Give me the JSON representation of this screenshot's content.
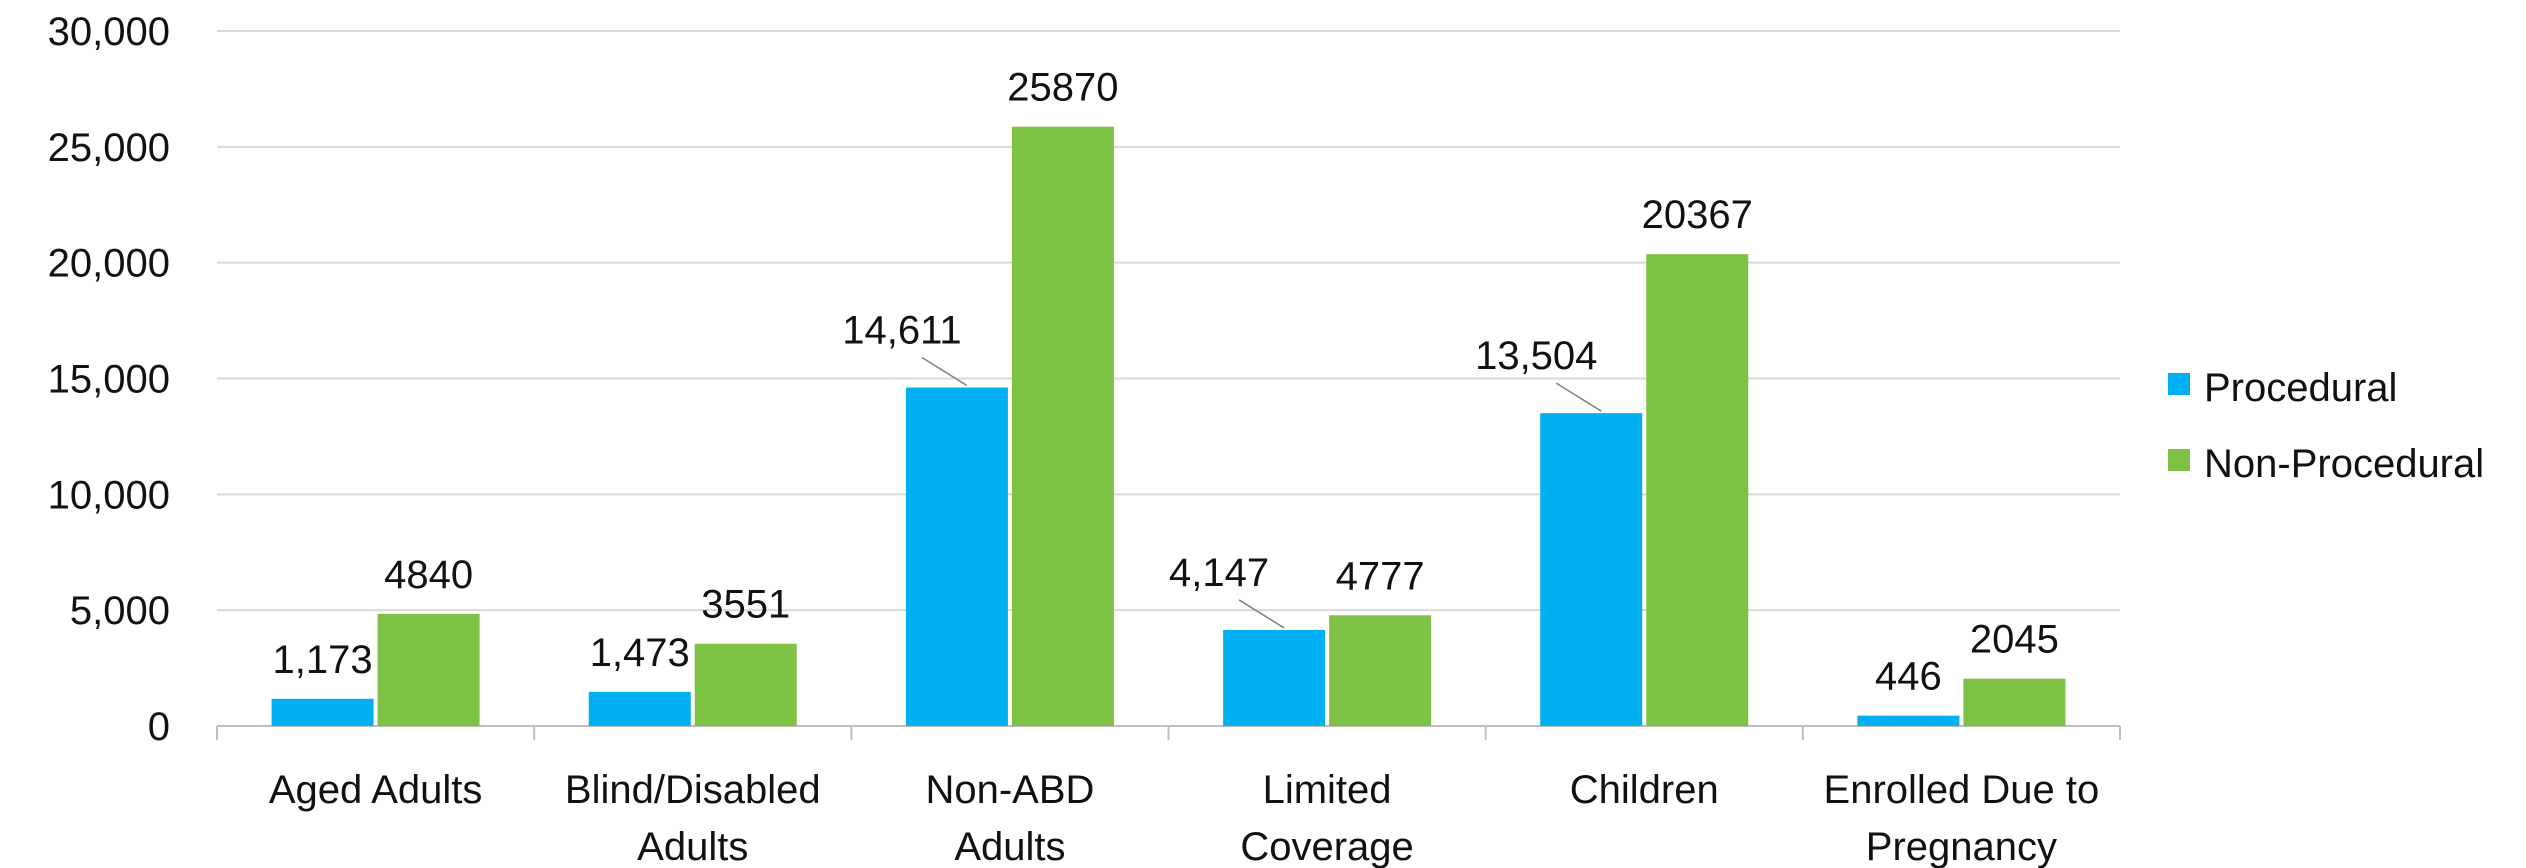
{
  "chart_data": {
    "type": "bar",
    "categories": [
      [
        "Aged Adults"
      ],
      [
        "Blind/Disabled",
        "Adults"
      ],
      [
        "Non-ABD",
        "Adults"
      ],
      [
        "Limited",
        "Coverage"
      ],
      [
        "Children"
      ],
      [
        "Enrolled Due to",
        "Pregnancy"
      ]
    ],
    "series": [
      {
        "name": "Procedural",
        "color": "#00B0F0",
        "values": [
          1173,
          1473,
          14611,
          4147,
          13504,
          446
        ],
        "labels": [
          "1,173",
          "1,473",
          "14,611",
          "4,147",
          "13,504",
          "446"
        ]
      },
      {
        "name": "Non-Procedural",
        "color": "#7DC242",
        "values": [
          4840,
          3551,
          25870,
          4777,
          20367,
          2045
        ],
        "labels": [
          "4840",
          "3551",
          "25870",
          "4777",
          "20367",
          "2045"
        ]
      }
    ],
    "ylim": [
      0,
      30000
    ],
    "yticks": [
      0,
      5000,
      10000,
      15000,
      20000,
      25000,
      30000
    ],
    "ytick_labels": [
      "0",
      "5,000",
      "10,000",
      "15,000",
      "20,000",
      "25,000",
      "30,000"
    ],
    "grid": true,
    "legend_position": "right",
    "gridline_color": "#D9D9D9"
  }
}
